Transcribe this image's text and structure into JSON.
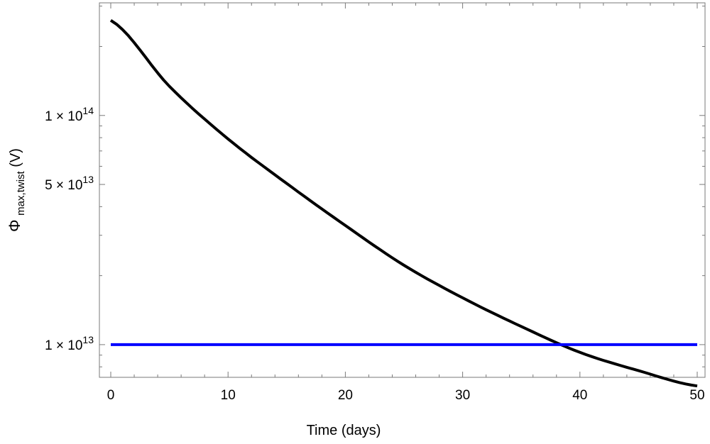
{
  "chart_data": {
    "type": "line",
    "title": "",
    "xlabel": "Time (days)",
    "ylabel": {
      "base": "Φ",
      "subscript": "max,twist",
      "unit": "(V)"
    },
    "y_scale": "log",
    "xlim": [
      0,
      50
    ],
    "ylim": [
      7200000000000.0,
      310000000000000.0
    ],
    "x_ticks": [
      0,
      10,
      20,
      30,
      40,
      50
    ],
    "y_ticks": [
      {
        "value": 100000000000000.0,
        "mantissa": "1",
        "times": "×",
        "base": "10",
        "exponent": "14"
      },
      {
        "value": 50000000000000.0,
        "mantissa": "5",
        "times": "×",
        "base": "10",
        "exponent": "13"
      },
      {
        "value": 10000000000000.0,
        "mantissa": "1",
        "times": "×",
        "base": "10",
        "exponent": "13"
      }
    ],
    "grid": false,
    "series": [
      {
        "color": "#000000",
        "x": [
          0,
          5,
          10,
          15,
          20,
          25,
          30,
          35,
          40,
          45,
          50
        ],
        "y": [
          260000000000000.0,
          134000000000000.0,
          79000000000000.0,
          50500000000000.0,
          33100000000000.0,
          22200000000000.0,
          16000000000000.0,
          12000000000000.0,
          9250000000000.0,
          7700000000000.0,
          6600000000000.0
        ]
      },
      {
        "color": "#0000ff",
        "x": [
          0,
          50
        ],
        "y": [
          10000000000000.0,
          10000000000000.0
        ]
      }
    ]
  }
}
